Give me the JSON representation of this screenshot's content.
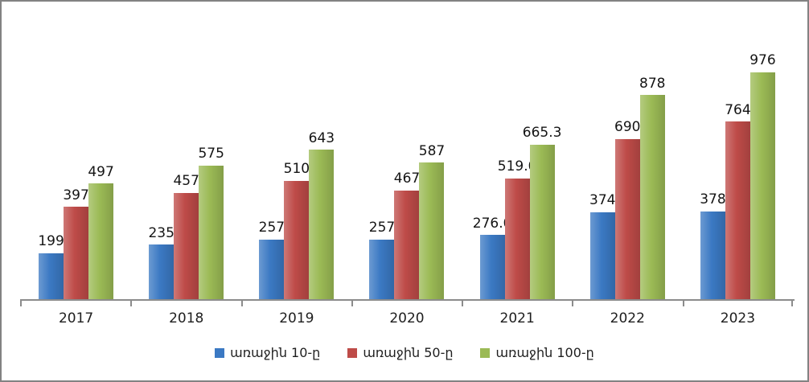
{
  "chart_data": {
    "type": "bar",
    "title": "",
    "xlabel": "",
    "ylabel": "",
    "categories": [
      "2017",
      "2018",
      "2019",
      "2020",
      "2021",
      "2022",
      "2023"
    ],
    "series": [
      {
        "name": "առաջին 10-ը",
        "color": "#3B79C3",
        "values": [
          199,
          235,
          257,
          257,
          276.0,
          374,
          378
        ],
        "labels": [
          "199",
          "235",
          "257",
          "257",
          "276.0",
          "374",
          "378"
        ]
      },
      {
        "name": "առաջին 50-ը",
        "color": "#BE4B48",
        "values": [
          397,
          457,
          510,
          467,
          519.0,
          690,
          764
        ],
        "labels": [
          "397",
          "457",
          "510",
          "467",
          "519.0",
          "690",
          "764"
        ]
      },
      {
        "name": "առաջին 100-ը",
        "color": "#9BBA55",
        "values": [
          497,
          575,
          643,
          587,
          665.3,
          878,
          976
        ],
        "labels": [
          "497",
          "575",
          "643",
          "587",
          "665.3",
          "878",
          "976"
        ]
      }
    ],
    "ylim": [
      0,
      1280
    ],
    "y_axis_visible": false,
    "grid": false,
    "legend_position": "bottom",
    "axis_color": "#8c8c8c",
    "border_color": "#828282",
    "label_color": "#141414"
  }
}
